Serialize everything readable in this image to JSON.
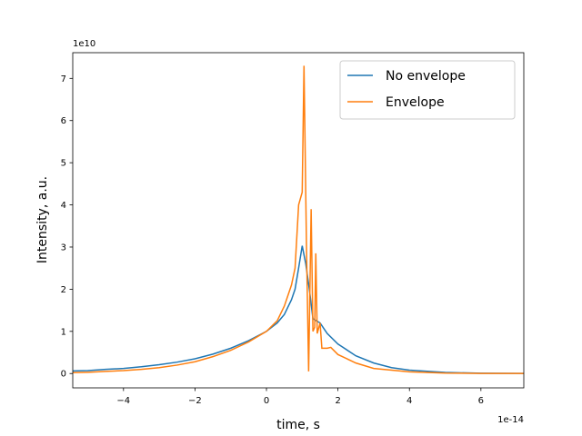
{
  "chart_data": {
    "type": "line",
    "xlabel": "time, s",
    "ylabel": "Intensity, a.u.",
    "x_offset_label": "1e-14",
    "y_offset_label": "1e10",
    "xlim": [
      -5.42,
      7.2
    ],
    "ylim": [
      -0.34,
      7.61
    ],
    "xticks": [
      {
        "value": -4,
        "label": "−4"
      },
      {
        "value": -2,
        "label": "−2"
      },
      0,
      2,
      4,
      6
    ],
    "yticks": [
      0,
      1,
      2,
      3,
      4,
      5,
      6,
      7
    ],
    "legend": "upper right",
    "series": [
      {
        "name": "No envelope",
        "color": "#1f77b4",
        "x": [
          -5.42,
          -5,
          -4.5,
          -4,
          -3.5,
          -3,
          -2.5,
          -2,
          -1.5,
          -1,
          -0.5,
          0,
          0.3,
          0.5,
          0.7,
          0.8,
          0.9,
          1.0,
          1.1,
          1.2,
          1.3,
          1.5,
          1.7,
          2,
          2.5,
          3,
          3.5,
          4,
          5,
          6,
          7.2
        ],
        "values": [
          0.06,
          0.07,
          0.1,
          0.12,
          0.16,
          0.21,
          0.27,
          0.35,
          0.46,
          0.6,
          0.78,
          1.0,
          1.2,
          1.4,
          1.75,
          2.0,
          2.5,
          3.03,
          2.6,
          2.0,
          1.3,
          1.2,
          0.95,
          0.7,
          0.42,
          0.25,
          0.14,
          0.08,
          0.025,
          0.008,
          0.003
        ]
      },
      {
        "name": "Envelope",
        "color": "#ff7f0e",
        "x": [
          -5.42,
          -5,
          -4.5,
          -4,
          -3.5,
          -3,
          -2.5,
          -2,
          -1.5,
          -1,
          -0.5,
          0,
          0.3,
          0.5,
          0.7,
          0.8,
          0.9,
          1.0,
          1.05,
          1.12,
          1.18,
          1.25,
          1.3,
          1.35,
          1.38,
          1.42,
          1.5,
          1.55,
          1.7,
          1.8,
          2.0,
          2.5,
          3.0,
          4.0,
          5.0,
          6.0,
          7.2
        ],
        "values": [
          0.02,
          0.03,
          0.05,
          0.07,
          0.1,
          0.14,
          0.2,
          0.28,
          0.4,
          0.55,
          0.75,
          1.0,
          1.25,
          1.6,
          2.1,
          2.5,
          4.0,
          4.3,
          7.3,
          3.0,
          0.05,
          3.9,
          1.0,
          1.1,
          2.85,
          0.95,
          1.2,
          0.6,
          0.6,
          0.62,
          0.45,
          0.25,
          0.12,
          0.04,
          0.01,
          0.003,
          0.001
        ]
      }
    ]
  }
}
